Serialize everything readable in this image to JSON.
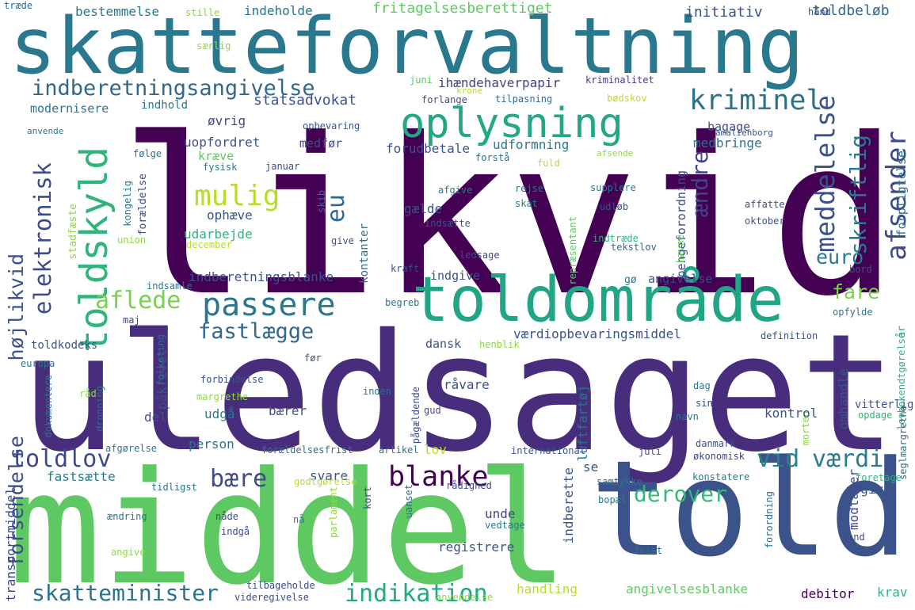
{
  "words": [
    {
      "text": "skatteforvaltning",
      "color": "#2a788e",
      "vertical": false
    },
    {
      "text": "likvid",
      "color": "#440154",
      "vertical": false
    },
    {
      "text": "uledsaget",
      "color": "#472d7b",
      "vertical": false
    },
    {
      "text": "middel",
      "color": "#5ec962",
      "vertical": false
    },
    {
      "text": "told",
      "color": "#3b528b",
      "vertical": false
    },
    {
      "text": "toldområde",
      "color": "#21a585",
      "vertical": false
    },
    {
      "text": "oplysning",
      "color": "#22a884",
      "vertical": false
    },
    {
      "text": "indberetningsangivelse",
      "color": "#31688e",
      "vertical": false
    },
    {
      "text": "kriminel",
      "color": "#2c728e",
      "vertical": false
    },
    {
      "text": "passere",
      "color": "#2a788e",
      "vertical": false
    },
    {
      "text": "fastlægge",
      "color": "#31688e",
      "vertical": false
    },
    {
      "text": "toldskyld",
      "color": "#2fb47c",
      "vertical": true
    },
    {
      "text": "mulig",
      "color": "#b5de2b",
      "vertical": false
    },
    {
      "text": "aflede",
      "color": "#7ad151",
      "vertical": false
    },
    {
      "text": "elektronisk",
      "color": "#3e4a89",
      "vertical": true
    },
    {
      "text": "forsendelse",
      "color": "#3e4a89",
      "vertical": true
    },
    {
      "text": "højlikvid",
      "color": "#3b528b",
      "vertical": true
    },
    {
      "text": "eu",
      "color": "#31688e",
      "vertical": true
    },
    {
      "text": "blanke",
      "color": "#440154",
      "vertical": false
    },
    {
      "text": "bære",
      "color": "#3e4a89",
      "vertical": false
    },
    {
      "text": "derover",
      "color": "#35b779",
      "vertical": false
    },
    {
      "text": "vid",
      "color": "#26828e",
      "vertical": false
    },
    {
      "text": "værdi",
      "color": "#287c8e",
      "vertical": false
    },
    {
      "text": "euro",
      "color": "#2a788e",
      "vertical": false
    },
    {
      "text": "fare",
      "color": "#7ad151",
      "vertical": false
    },
    {
      "text": "ændre",
      "color": "#414487",
      "vertical": true
    },
    {
      "text": "meddelelse",
      "color": "#3b528b",
      "vertical": true
    },
    {
      "text": "skriftlig",
      "color": "#2a788e",
      "vertical": true
    },
    {
      "text": "afsender",
      "color": "#3e4a89",
      "vertical": true
    },
    {
      "text": "toldlov",
      "color": "#3e4a89",
      "vertical": false
    },
    {
      "text": "skatteminister",
      "color": "#2c728e",
      "vertical": false
    },
    {
      "text": "indikation",
      "color": "#22a884",
      "vertical": false
    },
    {
      "text": "toldbeløb",
      "color": "#31688e",
      "vertical": false
    },
    {
      "text": "initiativ",
      "color": "#3b528b",
      "vertical": false
    },
    {
      "text": "fritagelsesberettiget",
      "color": "#5ec962",
      "vertical": false
    },
    {
      "text": "indeholde",
      "color": "#2c728e",
      "vertical": false
    },
    {
      "text": "bestemmelse",
      "color": "#2a788e",
      "vertical": false
    },
    {
      "text": "træde",
      "color": "#31688e",
      "vertical": false
    },
    {
      "text": "stille",
      "color": "#8fd744",
      "vertical": false
    },
    {
      "text": "hånd",
      "color": "#3b528b",
      "vertical": false
    },
    {
      "text": "særlig",
      "color": "#8fd744",
      "vertical": false
    },
    {
      "text": "statsadvokat",
      "color": "#3b528b",
      "vertical": false
    },
    {
      "text": "modernisere",
      "color": "#2c728e",
      "vertical": false
    },
    {
      "text": "indhold",
      "color": "#2a788e",
      "vertical": false
    },
    {
      "text": "øvrig",
      "color": "#3e4a89",
      "vertical": false
    },
    {
      "text": "uopfordret",
      "color": "#3b528b",
      "vertical": false
    },
    {
      "text": "medfør",
      "color": "#3e4a89",
      "vertical": false
    },
    {
      "text": "forudbetale",
      "color": "#3b528b",
      "vertical": false
    },
    {
      "text": "udformning",
      "color": "#2a788e",
      "vertical": false
    },
    {
      "text": "medbringe",
      "color": "#2c728e",
      "vertical": false
    },
    {
      "text": "bagage",
      "color": "#3b528b",
      "vertical": false
    },
    {
      "text": "ihændehaverpapir",
      "color": "#414487",
      "vertical": false
    },
    {
      "text": "kriminalitet",
      "color": "#433e85",
      "vertical": false
    },
    {
      "text": "forlange",
      "color": "#3e4a89",
      "vertical": false
    },
    {
      "text": "tilpasning",
      "color": "#31688e",
      "vertical": false
    },
    {
      "text": "bødskov",
      "color": "#b5de2b",
      "vertical": false
    },
    {
      "text": "juni",
      "color": "#5ec962",
      "vertical": false
    },
    {
      "text": "krone",
      "color": "#b5de2b",
      "vertical": false
    },
    {
      "text": "opbevaring",
      "color": "#3b528b",
      "vertical": false
    },
    {
      "text": "amalienborg",
      "color": "#3b528b",
      "vertical": false
    },
    {
      "text": "anvende",
      "color": "#2c728e",
      "vertical": false
    },
    {
      "text": "forældelse",
      "color": "#3e4a89",
      "vertical": true
    },
    {
      "text": "følge",
      "color": "#2c728e",
      "vertical": false
    },
    {
      "text": "fysisk",
      "color": "#2a788e",
      "vertical": false
    },
    {
      "text": "kræve",
      "color": "#5ec962",
      "vertical": false
    },
    {
      "text": "januar",
      "color": "#3e4a89",
      "vertical": false
    },
    {
      "text": "forstå",
      "color": "#2c728e",
      "vertical": false
    },
    {
      "text": "afsende",
      "color": "#8fd744",
      "vertical": false
    },
    {
      "text": "fuld",
      "color": "#b5de2b",
      "vertical": false
    },
    {
      "text": "forpligtelse",
      "color": "#2c728e",
      "vertical": true
    },
    {
      "text": "ophæve",
      "color": "#3b528b",
      "vertical": false
    },
    {
      "text": "udarbejde",
      "color": "#2fb47c",
      "vertical": false
    },
    {
      "text": "indberetningsblanke",
      "color": "#3b528b",
      "vertical": false
    },
    {
      "text": "gælde",
      "color": "#3b528b",
      "vertical": false
    },
    {
      "text": "pengeforordning",
      "color": "#3e4a89",
      "vertical": true
    },
    {
      "text": "rejse",
      "color": "#2c728e",
      "vertical": false
    },
    {
      "text": "skat",
      "color": "#2a788e",
      "vertical": false
    },
    {
      "text": "afgive",
      "color": "#2a788e",
      "vertical": false
    },
    {
      "text": "supplere",
      "color": "#2a788e",
      "vertical": false
    },
    {
      "text": "udløb",
      "color": "#3b528b",
      "vertical": false
    },
    {
      "text": "affatte",
      "color": "#3e4a89",
      "vertical": false
    },
    {
      "text": "oktober",
      "color": "#3b528b",
      "vertical": false
    },
    {
      "text": "hævne",
      "color": "#5ec962",
      "vertical": true
    },
    {
      "text": "indtræde",
      "color": "#2fb47c",
      "vertical": false
    },
    {
      "text": "tekstlov",
      "color": "#31688e",
      "vertical": false
    },
    {
      "text": "ledsage",
      "color": "#3e4a89",
      "vertical": false
    },
    {
      "text": "repræsentant",
      "color": "#5ec962",
      "vertical": true
    },
    {
      "text": "kontanter",
      "color": "#2c728e",
      "vertical": true
    },
    {
      "text": "indsætte",
      "color": "#3b528b",
      "vertical": false
    },
    {
      "text": "give",
      "color": "#3b528b",
      "vertical": false
    },
    {
      "text": "december",
      "color": "#b5de2b",
      "vertical": false
    },
    {
      "text": "union",
      "color": "#8fd744",
      "vertical": false
    },
    {
      "text": "kongelig",
      "color": "#2a788e",
      "vertical": true
    },
    {
      "text": "skib",
      "color": "#2c728e",
      "vertical": true
    },
    {
      "text": "stadfæste",
      "color": "#8fd744",
      "vertical": true
    },
    {
      "text": "indsamle",
      "color": "#2c728e",
      "vertical": false
    },
    {
      "text": "kraft",
      "color": "#3e4a89",
      "vertical": false
    },
    {
      "text": "indgive",
      "color": "#3b528b",
      "vertical": false
    },
    {
      "text": "gø",
      "color": "#2a788e",
      "vertical": false
    },
    {
      "text": "angivelse",
      "color": "#3e4a89",
      "vertical": false
    },
    {
      "text": "bord",
      "color": "#3b528b",
      "vertical": false
    },
    {
      "text": "begreb",
      "color": "#2a788e",
      "vertical": false
    },
    {
      "text": "maj",
      "color": "#3e4a89",
      "vertical": false
    },
    {
      "text": "opfylde",
      "color": "#2c728e",
      "vertical": false
    },
    {
      "text": "toldkodeks",
      "color": "#3b528b",
      "vertical": false
    },
    {
      "text": "dansk",
      "color": "#3b528b",
      "vertical": false
    },
    {
      "text": "værdiopbevaringsmiddel",
      "color": "#3b528b",
      "vertical": false
    },
    {
      "text": "definition",
      "color": "#3b528b",
      "vertical": false
    },
    {
      "text": "år",
      "color": "#2fb47c",
      "vertical": true
    },
    {
      "text": "lovbekendtgørelse",
      "color": "#2fb47c",
      "vertical": true
    },
    {
      "text": "henblik",
      "color": "#8fd744",
      "vertical": false
    },
    {
      "text": "europa",
      "color": "#2c728e",
      "vertical": false
    },
    {
      "text": "påkrævet",
      "color": "#3b528b",
      "vertical": true
    },
    {
      "text": "folketing",
      "color": "#2c728e",
      "vertical": true
    },
    {
      "text": "forbindelse",
      "color": "#3b528b",
      "vertical": false
    },
    {
      "text": "margrethe",
      "color": "#8fd744",
      "vertical": false
    },
    {
      "text": "dokumentere",
      "color": "#2c728e",
      "vertical": true
    },
    {
      "text": "råd",
      "color": "#8fd744",
      "vertical": false
    },
    {
      "text": "dronning",
      "color": "#2c728e",
      "vertical": true
    },
    {
      "text": "før",
      "color": "#3b528b",
      "vertical": false
    },
    {
      "text": "inden",
      "color": "#2c728e",
      "vertical": false
    },
    {
      "text": "råvare",
      "color": "#3b528b",
      "vertical": false
    },
    {
      "text": "dag",
      "color": "#2c728e",
      "vertical": false
    },
    {
      "text": "sin",
      "color": "#3e4a89",
      "vertical": false
    },
    {
      "text": "omhandle",
      "color": "#3b528b",
      "vertical": true
    },
    {
      "text": "morten",
      "color": "#8fd744",
      "vertical": true
    },
    {
      "text": "vitterlig",
      "color": "#3b528b",
      "vertical": false
    },
    {
      "text": "opdage",
      "color": "#2fb47c",
      "vertical": false
    },
    {
      "text": "kontrol",
      "color": "#3b528b",
      "vertical": false
    },
    {
      "text": "navn",
      "color": "#2c728e",
      "vertical": false
    },
    {
      "text": "luftfartøj",
      "color": "#2c728e",
      "vertical": true
    },
    {
      "text": "gud",
      "color": "#3e4a89",
      "vertical": false
    },
    {
      "text": "pågældende",
      "color": "#3e4a89",
      "vertical": true
    },
    {
      "text": "udgå",
      "color": "#2a788e",
      "vertical": false
    },
    {
      "text": "bærer",
      "color": "#3b528b",
      "vertical": false
    },
    {
      "text": "del",
      "color": "#3b528b",
      "vertical": false
    },
    {
      "text": "person",
      "color": "#2c728e",
      "vertical": false
    },
    {
      "text": "afgørelse",
      "color": "#2c728e",
      "vertical": false
    },
    {
      "text": "forældelsesfrist",
      "color": "#2c728e",
      "vertical": false
    },
    {
      "text": "artikel",
      "color": "#2a788e",
      "vertical": false
    },
    {
      "text": "international",
      "color": "#3b528b",
      "vertical": false
    },
    {
      "text": "danmark",
      "color": "#3b528b",
      "vertical": false
    },
    {
      "text": "økonomisk",
      "color": "#3e4a89",
      "vertical": false
    },
    {
      "text": "juli",
      "color": "#3b528b",
      "vertical": false
    },
    {
      "text": "seglmargrethe",
      "color": "#2c728e",
      "vertical": true
    },
    {
      "text": "lov",
      "color": "#b5de2b",
      "vertical": false
    },
    {
      "text": "svare",
      "color": "#3b528b",
      "vertical": false
    },
    {
      "text": "se",
      "color": "#3b528b",
      "vertical": false
    },
    {
      "text": "foretage",
      "color": "#2fb47c",
      "vertical": false
    },
    {
      "text": "fastsætte",
      "color": "#2a788e",
      "vertical": false
    },
    {
      "text": "godtgørelse",
      "color": "#b5de2b",
      "vertical": false
    },
    {
      "text": "transportmiddel",
      "color": "#3e4a89",
      "vertical": true
    },
    {
      "text": "tidligst",
      "color": "#2c728e",
      "vertical": false
    },
    {
      "text": "rådighed",
      "color": "#3e4a89",
      "vertical": false
    },
    {
      "text": "samtykke",
      "color": "#2c728e",
      "vertical": false
    },
    {
      "text": "bopæl",
      "color": "#2a788e",
      "vertical": false
    },
    {
      "text": "konstatere",
      "color": "#2a788e",
      "vertical": false
    },
    {
      "text": "modtager",
      "color": "#3e4a89",
      "vertical": true
    },
    {
      "text": "opgive",
      "color": "#3b528b",
      "vertical": false
    },
    {
      "text": "ændring",
      "color": "#2c728e",
      "vertical": false
    },
    {
      "text": "unde",
      "color": "#3e4a89",
      "vertical": false
    },
    {
      "text": "vedtage",
      "color": "#2a788e",
      "vertical": false
    },
    {
      "text": "indberette",
      "color": "#3b528b",
      "vertical": true
    },
    {
      "text": "forordning",
      "color": "#2c728e",
      "vertical": true
    },
    {
      "text": "nåde",
      "color": "#3e4a89",
      "vertical": false
    },
    {
      "text": "indgå",
      "color": "#3e4a89",
      "vertical": false
    },
    {
      "text": "nå",
      "color": "#2a788e",
      "vertical": false
    },
    {
      "text": "parlament",
      "color": "#8fd744",
      "vertical": true
    },
    {
      "text": "kort",
      "color": "#3e4a89",
      "vertical": true
    },
    {
      "text": "uanset",
      "color": "#2c728e",
      "vertical": true
    },
    {
      "text": "registrere",
      "color": "#3b528b",
      "vertical": false
    },
    {
      "text": "and",
      "color": "#3e4a89",
      "vertical": false
    },
    {
      "text": "angive",
      "color": "#8fd744",
      "vertical": false
    },
    {
      "text": "handling",
      "color": "#b5de2b",
      "vertical": false
    },
    {
      "text": "frist",
      "color": "#2c728e",
      "vertical": false
    },
    {
      "text": "tilbageholde",
      "color": "#3e4a89",
      "vertical": false
    },
    {
      "text": "videregivelse",
      "color": "#3e4a89",
      "vertical": false
    },
    {
      "text": "anvendelse",
      "color": "#8fd744",
      "vertical": false
    },
    {
      "text": "angivelsesblanke",
      "color": "#5ec962",
      "vertical": false
    },
    {
      "text": "debitor",
      "color": "#440154",
      "vertical": false
    },
    {
      "text": "krav",
      "color": "#2fb47c",
      "vertical": false
    }
  ]
}
